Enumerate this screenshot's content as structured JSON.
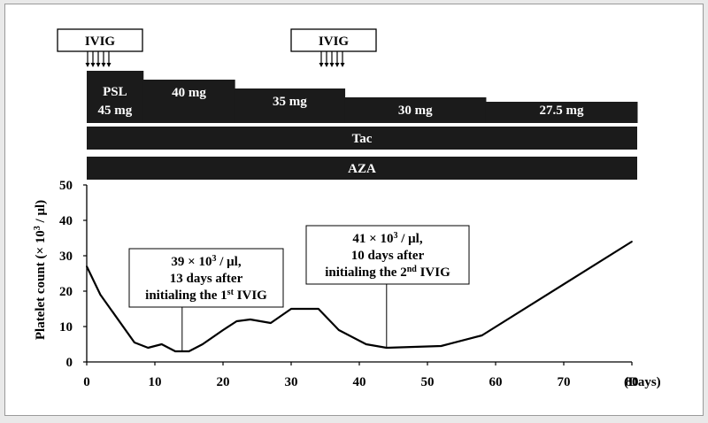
{
  "chart_data": {
    "type": "line",
    "ylabel": "Platelet count (× 10³ / μl)",
    "x_unit": "(Days)",
    "xlim": [
      0,
      80
    ],
    "ylim": [
      0,
      50
    ],
    "xticks": [
      0,
      10,
      20,
      30,
      40,
      50,
      60,
      70,
      80
    ],
    "yticks": [
      0,
      10,
      20,
      30,
      40,
      50
    ],
    "grid": false,
    "series": [
      {
        "x": [
          0,
          2,
          7,
          9,
          11,
          12,
          13,
          14,
          15,
          17,
          20,
          22,
          24,
          27,
          30,
          34,
          37,
          41,
          44,
          52,
          58,
          80
        ],
        "y": [
          27,
          19,
          5.5,
          4,
          5,
          4,
          3,
          3,
          3,
          5,
          9,
          11.5,
          12,
          11,
          15,
          15,
          9,
          5,
          4,
          4.5,
          7.5,
          34
        ]
      }
    ],
    "ivig": [
      {
        "label": "IVIG",
        "days": [
          0,
          1,
          2,
          3,
          4
        ]
      },
      {
        "label": "IVIG",
        "days": [
          35,
          36,
          37,
          38,
          39
        ]
      }
    ],
    "psl": {
      "title": "PSL",
      "steps": [
        {
          "label": "45 mg",
          "start": 0,
          "end": 8.2,
          "level": 45
        },
        {
          "label": "40 mg",
          "start": 8.2,
          "end": 21.5,
          "level": 40
        },
        {
          "label": "35 mg",
          "start": 21.5,
          "end": 37.5,
          "level": 35
        },
        {
          "label": "30 mg",
          "start": 37.5,
          "end": 58,
          "level": 30
        },
        {
          "label": "27.5 mg",
          "start": 58,
          "end": 80,
          "level": 27.5
        }
      ]
    },
    "bars": [
      {
        "label": "Tac",
        "start": 0,
        "end": 80
      },
      {
        "label": "AZA",
        "start": 0,
        "end": 80
      }
    ],
    "annotations": [
      {
        "lines": [
          "39 × 10³ / μl,",
          "13 days after",
          "initialing the 1st IVIG"
        ],
        "point": [
          14,
          3
        ]
      },
      {
        "lines": [
          "41 × 10³ / μl,",
          "10 days after",
          "initialing the 2nd IVIG"
        ],
        "point": [
          44,
          4
        ]
      }
    ]
  }
}
